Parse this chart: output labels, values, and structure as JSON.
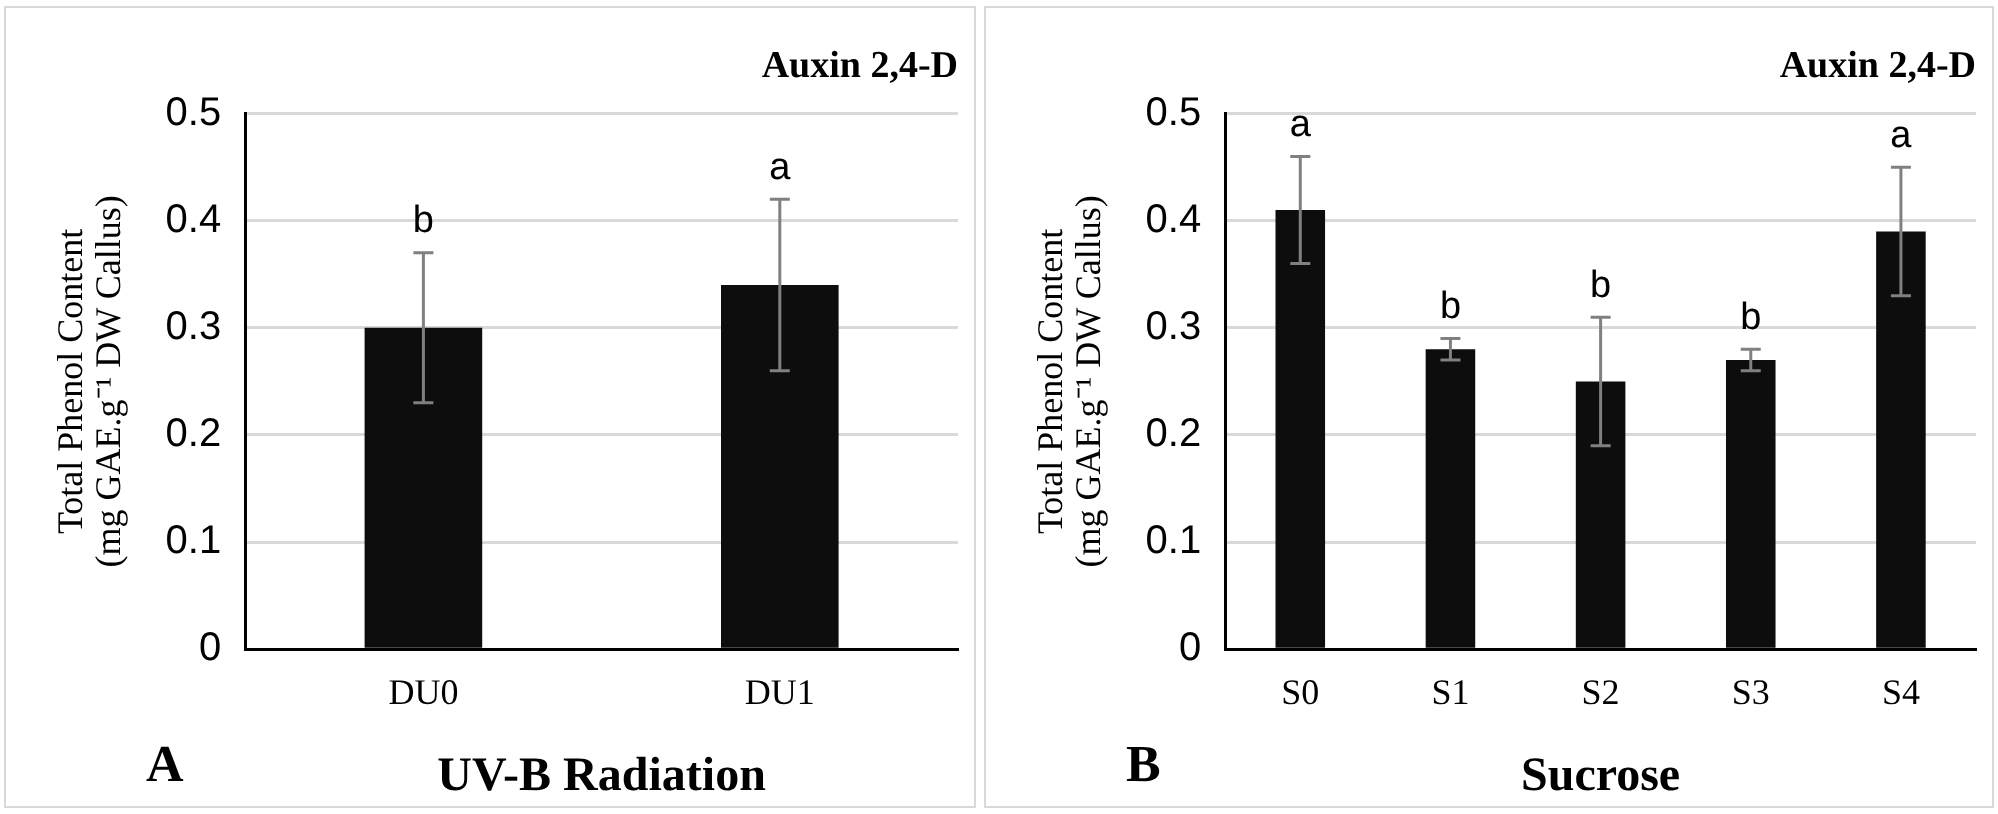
{
  "chart_data": [
    {
      "type": "bar",
      "title": "Auxin 2,4-D",
      "xlabel": "UV-B Radiation",
      "ylabel": "Total Phenol Content (mg GAE.g⁻¹ DW Callus)",
      "categories": [
        "DU0",
        "DU1"
      ],
      "values": [
        0.3,
        0.34
      ],
      "errors": [
        0.07,
        0.08
      ],
      "color": "#0d0d0d",
      "ylim": [
        0,
        0.5
      ],
      "yticks": [
        0,
        0.1,
        0.2,
        0.3,
        0.4,
        0.5
      ],
      "grid": "y",
      "annotations": [
        {
          "text": "b",
          "x": "DU0",
          "y": 0.37
        },
        {
          "text": "a",
          "x": "DU1",
          "y": 0.42
        },
        "A"
      ]
    },
    {
      "type": "bar",
      "title": "Auxin 2,4-D",
      "xlabel": "Sucrose",
      "ylabel": "Total Phenol Content (mg GAE.g⁻¹ DW Callus)",
      "categories": [
        "S0",
        "S1",
        "S2",
        "S3",
        "S4"
      ],
      "values": [
        0.41,
        0.28,
        0.25,
        0.27,
        0.39
      ],
      "errors": [
        0.05,
        0.01,
        0.06,
        0.01,
        0.06
      ],
      "color": "#0d0d0d",
      "ylim": [
        0,
        0.5
      ],
      "yticks": [
        0,
        0.1,
        0.2,
        0.3,
        0.4,
        0.5
      ],
      "grid": "y",
      "annotations": [
        {
          "text": "a",
          "x": "S0",
          "y": 0.46
        },
        {
          "text": "b",
          "x": "S1",
          "y": 0.29
        },
        {
          "text": "b",
          "x": "S2",
          "y": 0.31
        },
        {
          "text": "b",
          "x": "S3",
          "y": 0.28
        },
        {
          "text": "a",
          "x": "S4",
          "y": 0.45
        },
        "B"
      ]
    }
  ]
}
